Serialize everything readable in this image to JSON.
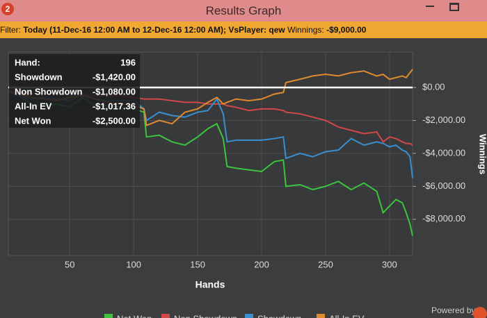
{
  "window": {
    "title": "Results Graph",
    "app_icon": "2"
  },
  "filter": {
    "label": "Filter:",
    "range": "Today (11-Dec-16 12:00 AM to 12-Dec-16 12:00 AM); VsPlayer: qew",
    "winnings_label": "Winnings:",
    "winnings": "-$9,000.00"
  },
  "tooltip": {
    "rows": [
      [
        "Hand:",
        "196"
      ],
      [
        "Showdown",
        "-$1,420.00"
      ],
      [
        "Non Showdown",
        "-$1,080.00"
      ],
      [
        "All-In EV",
        "-$1,017.36"
      ],
      [
        "Net Won",
        "-$2,500.00"
      ]
    ]
  },
  "footer": {
    "powered_by": "Powered by"
  },
  "chart_data": {
    "type": "line",
    "x_label": "Hands",
    "y_label": "Winnings",
    "grid": true,
    "x": [
      3,
      10,
      20,
      30,
      40,
      50,
      60,
      70,
      80,
      90,
      100,
      108,
      110,
      120,
      130,
      140,
      150,
      158,
      165,
      170,
      173,
      180,
      190,
      200,
      210,
      217,
      219,
      230,
      240,
      250,
      260,
      270,
      280,
      290,
      295,
      300,
      305,
      310,
      313,
      316,
      318
    ],
    "xlim": [
      2,
      318
    ],
    "xticks": [
      50,
      100,
      150,
      200,
      250,
      300
    ],
    "ylim": [
      -10200,
      2150
    ],
    "yticks": [
      {
        "value": 0,
        "label": "$0.00"
      },
      {
        "value": -2000,
        "label": "-$2,000.00"
      },
      {
        "value": -4000,
        "label": "-$4,000.00"
      },
      {
        "value": -6000,
        "label": "-$6,000.00"
      },
      {
        "value": -8000,
        "label": "-$8,000.00"
      }
    ],
    "series": [
      {
        "name": "Net Won",
        "color": "#3cc43c",
        "values": [
          -200,
          -500,
          -1000,
          -1100,
          -1000,
          -1200,
          -600,
          -1100,
          -1100,
          -1200,
          -1300,
          -1500,
          -3000,
          -2900,
          -3300,
          -3500,
          -3000,
          -2500,
          -2200,
          -3100,
          -4800,
          -4900,
          -5000,
          -5100,
          -4500,
          -4400,
          -6000,
          -5900,
          -6200,
          -6000,
          -5700,
          -6200,
          -5800,
          -6300,
          -7600,
          -7200,
          -6800,
          -7000,
          -7600,
          -8300,
          -9000
        ]
      },
      {
        "name": "Non Showdown",
        "color": "#d04848",
        "values": [
          -200,
          -300,
          -400,
          -400,
          -300,
          -400,
          -400,
          -500,
          -500,
          -500,
          -600,
          -700,
          -700,
          -700,
          -800,
          -900,
          -900,
          -1000,
          -1000,
          -1000,
          -1100,
          -1200,
          -1400,
          -1300,
          -1300,
          -1400,
          -1500,
          -1600,
          -1800,
          -2000,
          -2400,
          -2600,
          -2800,
          -2700,
          -3300,
          -3000,
          -3100,
          -3300,
          -3400,
          -3400,
          -3500
        ]
      },
      {
        "name": "Showdown",
        "color": "#3a8fd0",
        "values": [
          -300,
          -500,
          -700,
          -600,
          -700,
          -800,
          -400,
          -700,
          -800,
          -800,
          -800,
          -1300,
          -2000,
          -1500,
          -1700,
          -1800,
          -1500,
          -1400,
          -700,
          -1600,
          -3300,
          -3200,
          -3200,
          -3200,
          -3100,
          -3000,
          -4300,
          -4000,
          -4200,
          -3900,
          -3800,
          -3100,
          -3500,
          -3300,
          -3400,
          -3600,
          -3500,
          -3800,
          -3900,
          -4200,
          -5500
        ]
      },
      {
        "name": "All-In EV",
        "color": "#e08a30",
        "values": [
          -300,
          -400,
          -600,
          -700,
          -800,
          -600,
          -500,
          -700,
          -900,
          -1000,
          -1100,
          -1300,
          -2300,
          -2000,
          -2200,
          -1500,
          -1300,
          -900,
          -600,
          -1000,
          -900,
          -700,
          -800,
          -700,
          -400,
          -300,
          300,
          500,
          700,
          800,
          700,
          900,
          1000,
          700,
          800,
          500,
          600,
          700,
          600,
          900,
          1100
        ]
      }
    ]
  }
}
